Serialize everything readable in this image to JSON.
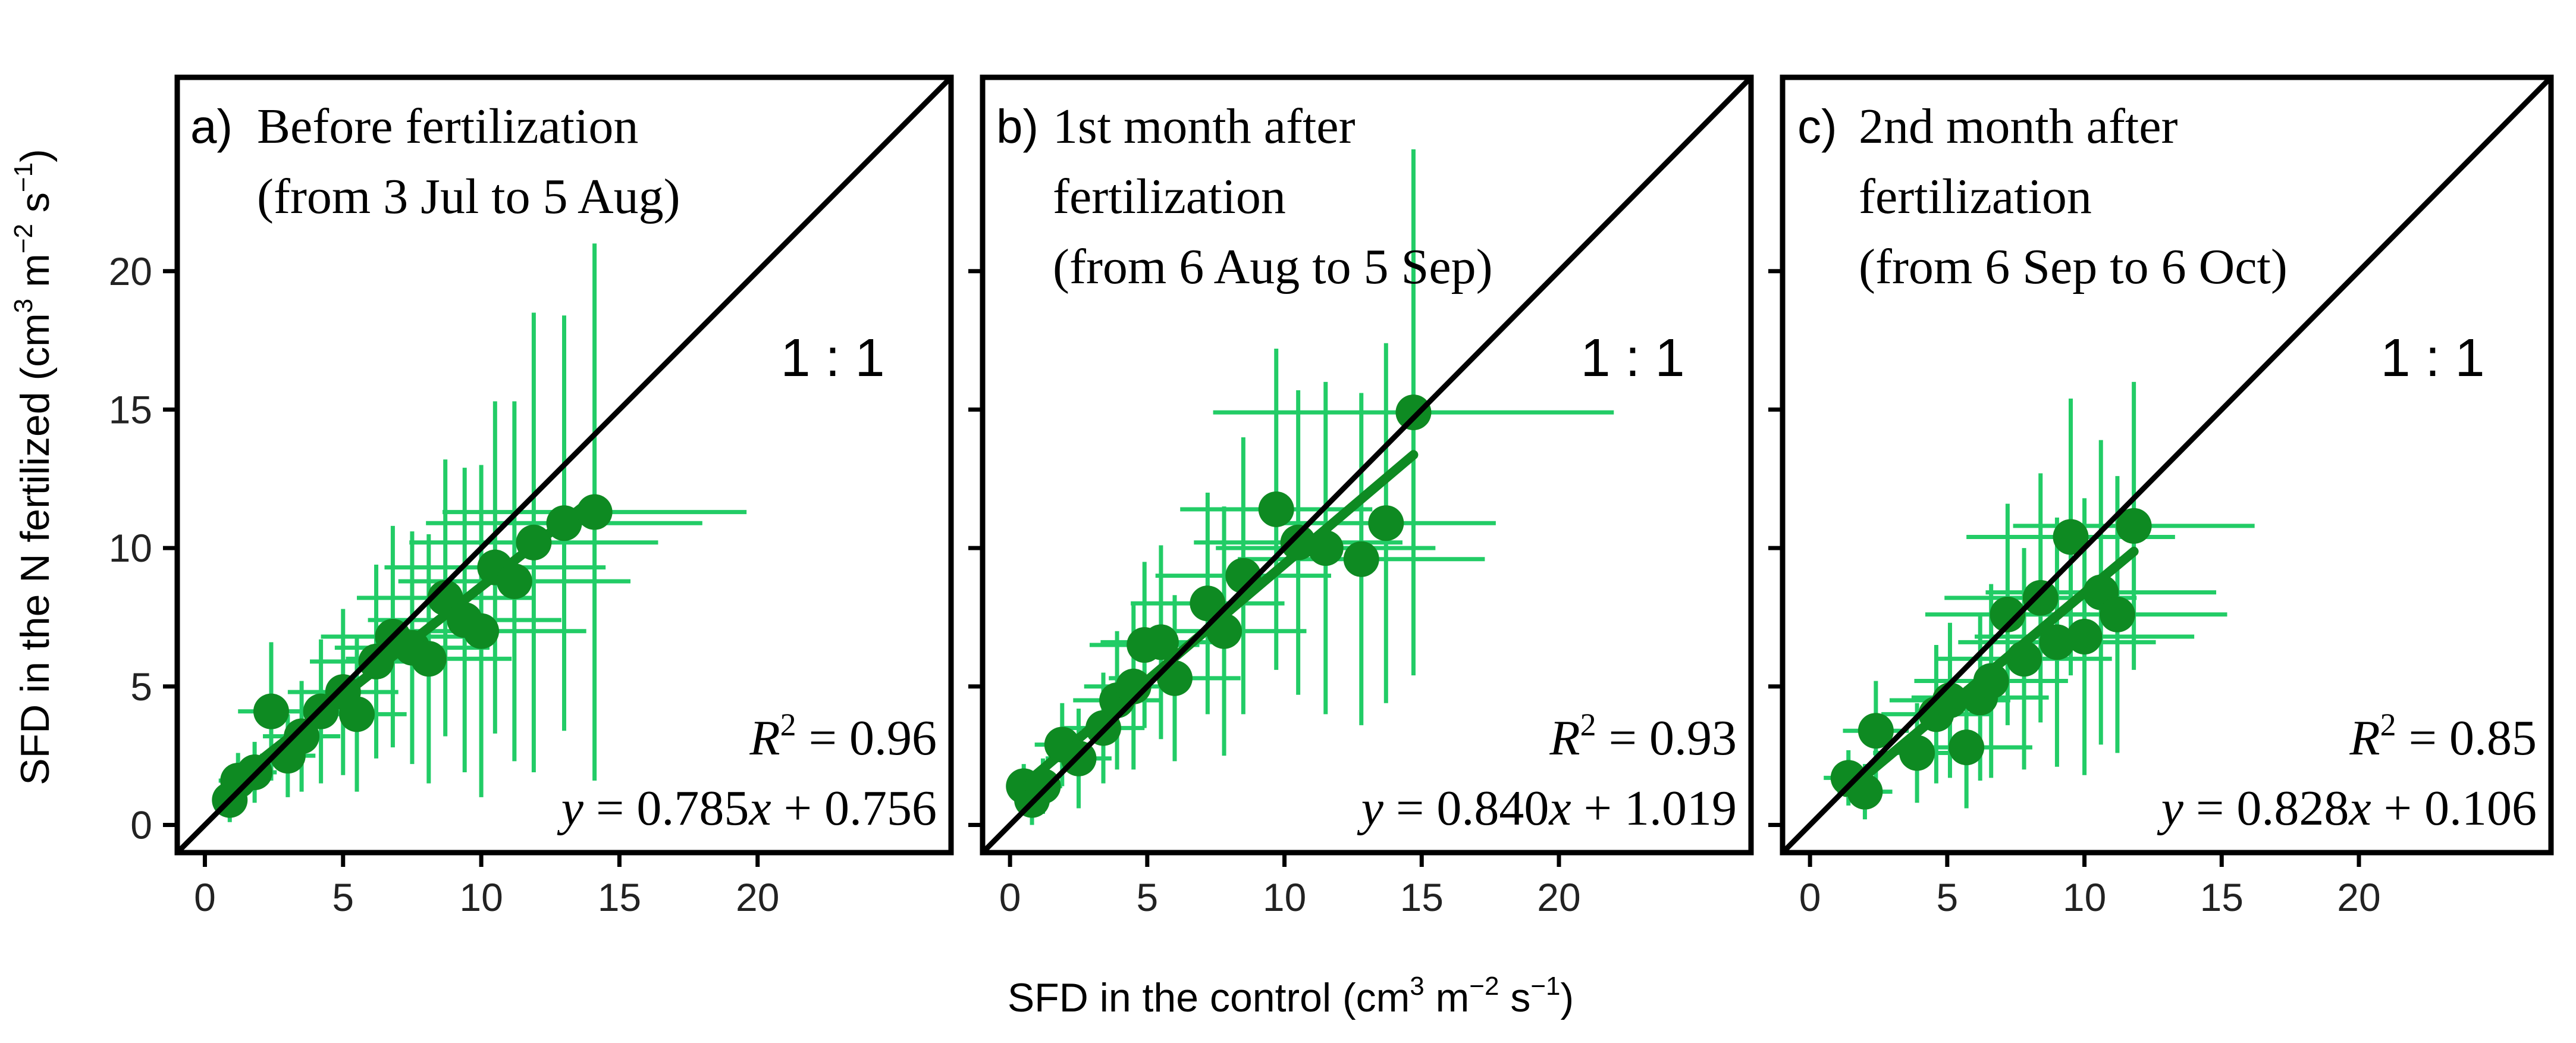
{
  "figure": {
    "ylabel_main": "SFD in the N fertilized (cm",
    "ylabel_sup1": "3",
    "ylabel_mid": " m",
    "ylabel_sup2": "−2",
    "ylabel_mid2": " s",
    "ylabel_sup3": "−1",
    "ylabel_end": ")",
    "xlabel_main": "SFD in the control (cm",
    "xlabel_sup1": "3",
    "xlabel_mid": " m",
    "xlabel_sup2": "−2",
    "xlabel_mid2": " s",
    "xlabel_sup3": "−1",
    "xlabel_end": ")",
    "colors": {
      "points": "#0e8a22",
      "errorbars": "#22cc66",
      "fit": "#0e8a22",
      "axis": "#000000"
    }
  },
  "chart_data": [
    {
      "type": "scatter",
      "panel_label": "a)",
      "title_lines": [
        "Before fertilization",
        "(from 3 Jul to 5 Aug)"
      ],
      "one_to_one_label": "1 : 1",
      "r2_label": "R",
      "r2_sup": "2",
      "r2_value": " = 0.96",
      "eq_y": "y",
      "eq_mid": " = 0.785",
      "eq_x": "x",
      "eq_end": " + 0.756",
      "slope": 0.785,
      "intercept": 0.756,
      "fit_range": [
        0.7,
        14.0
      ],
      "xlim": [
        -1,
        27
      ],
      "ylim": [
        -1,
        27
      ],
      "xticks": [
        0,
        5,
        10,
        15,
        20
      ],
      "yticks": [
        0,
        5,
        10,
        15,
        20
      ],
      "points": [
        {
          "x": 0.9,
          "y": 0.9,
          "xe": 0.6,
          "ye": 0.8
        },
        {
          "x": 1.2,
          "y": 1.6,
          "xe": 0.7,
          "ye": 1.0
        },
        {
          "x": 1.8,
          "y": 1.9,
          "xe": 0.8,
          "ye": 1.1
        },
        {
          "x": 2.4,
          "y": 4.1,
          "xe": 1.2,
          "ye": 2.5
        },
        {
          "x": 3.0,
          "y": 2.5,
          "xe": 1.0,
          "ye": 1.5
        },
        {
          "x": 3.5,
          "y": 3.2,
          "xe": 1.4,
          "ye": 2.0
        },
        {
          "x": 4.2,
          "y": 4.1,
          "xe": 1.6,
          "ye": 2.6
        },
        {
          "x": 5.0,
          "y": 4.8,
          "xe": 2.0,
          "ye": 3.0
        },
        {
          "x": 5.5,
          "y": 4.0,
          "xe": 1.8,
          "ye": 2.8
        },
        {
          "x": 6.2,
          "y": 5.9,
          "xe": 2.4,
          "ye": 3.5
        },
        {
          "x": 6.8,
          "y": 6.8,
          "xe": 2.6,
          "ye": 4.0
        },
        {
          "x": 7.5,
          "y": 6.4,
          "xe": 2.8,
          "ye": 4.2
        },
        {
          "x": 8.1,
          "y": 6.0,
          "xe": 3.0,
          "ye": 4.5
        },
        {
          "x": 8.7,
          "y": 8.2,
          "xe": 3.2,
          "ye": 5.0
        },
        {
          "x": 9.4,
          "y": 7.4,
          "xe": 3.5,
          "ye": 5.5
        },
        {
          "x": 10.0,
          "y": 7.0,
          "xe": 3.8,
          "ye": 6.0
        },
        {
          "x": 10.5,
          "y": 9.3,
          "xe": 4.0,
          "ye": 6.0
        },
        {
          "x": 11.2,
          "y": 8.8,
          "xe": 4.2,
          "ye": 6.5
        },
        {
          "x": 11.9,
          "y": 10.2,
          "xe": 4.5,
          "ye": 8.3
        },
        {
          "x": 13.0,
          "y": 10.9,
          "xe": 5.0,
          "ye": 7.5
        },
        {
          "x": 14.1,
          "y": 11.3,
          "xe": 5.5,
          "ye": 9.7
        }
      ]
    },
    {
      "type": "scatter",
      "panel_label": "b)",
      "title_lines": [
        "1st month after",
        "fertilization",
        "(from 6 Aug to 5 Sep)"
      ],
      "one_to_one_label": "1 : 1",
      "r2_label": "R",
      "r2_sup": "2",
      "r2_value": " = 0.93",
      "eq_y": "y",
      "eq_mid": " = 0.840",
      "eq_x": "x",
      "eq_end": " + 1.019",
      "slope": 0.84,
      "intercept": 1.019,
      "fit_range": [
        0.5,
        14.7
      ],
      "xlim": [
        -1,
        27
      ],
      "ylim": [
        -1,
        27
      ],
      "xticks": [
        0,
        5,
        10,
        15,
        20
      ],
      "yticks": [
        0,
        5,
        10,
        15,
        20
      ],
      "points": [
        {
          "x": 0.5,
          "y": 1.4,
          "xe": 0.5,
          "ye": 0.8
        },
        {
          "x": 0.8,
          "y": 0.9,
          "xe": 0.6,
          "ye": 0.9
        },
        {
          "x": 1.2,
          "y": 1.4,
          "xe": 0.7,
          "ye": 1.0
        },
        {
          "x": 1.9,
          "y": 2.9,
          "xe": 1.0,
          "ye": 1.5
        },
        {
          "x": 2.5,
          "y": 2.4,
          "xe": 1.2,
          "ye": 1.8
        },
        {
          "x": 3.4,
          "y": 3.5,
          "xe": 1.5,
          "ye": 2.0
        },
        {
          "x": 3.9,
          "y": 4.5,
          "xe": 1.6,
          "ye": 2.5
        },
        {
          "x": 4.5,
          "y": 5.0,
          "xe": 1.8,
          "ye": 3.0
        },
        {
          "x": 4.9,
          "y": 6.5,
          "xe": 2.0,
          "ye": 3.0
        },
        {
          "x": 5.5,
          "y": 6.6,
          "xe": 2.2,
          "ye": 3.5
        },
        {
          "x": 6.0,
          "y": 5.3,
          "xe": 2.4,
          "ye": 3.0
        },
        {
          "x": 7.2,
          "y": 8.0,
          "xe": 2.8,
          "ye": 4.0
        },
        {
          "x": 7.8,
          "y": 7.0,
          "xe": 3.0,
          "ye": 4.5
        },
        {
          "x": 8.5,
          "y": 9.0,
          "xe": 3.2,
          "ye": 5.0
        },
        {
          "x": 9.7,
          "y": 11.4,
          "xe": 3.5,
          "ye": 5.8
        },
        {
          "x": 10.5,
          "y": 10.2,
          "xe": 3.8,
          "ye": 5.5
        },
        {
          "x": 11.5,
          "y": 10.0,
          "xe": 4.0,
          "ye": 6.0
        },
        {
          "x": 12.8,
          "y": 9.6,
          "xe": 4.5,
          "ye": 6.0
        },
        {
          "x": 13.7,
          "y": 10.9,
          "xe": 4.0,
          "ye": 6.5
        },
        {
          "x": 14.7,
          "y": 14.9,
          "xe": 7.3,
          "ye": 9.5
        }
      ]
    },
    {
      "type": "scatter",
      "panel_label": "c)",
      "title_lines": [
        "2nd month after",
        "fertilization",
        "(from 6 Sep to 6 Oct)"
      ],
      "one_to_one_label": "1 : 1",
      "r2_label": "R",
      "r2_sup": "2",
      "r2_value": " = 0.85",
      "eq_y": "y",
      "eq_mid": " = 0.828",
      "eq_x": "x",
      "eq_end": " + 0.106",
      "slope": 0.828,
      "intercept": 0.106,
      "fit_range": [
        1.3,
        11.8
      ],
      "xlim": [
        -1,
        27
      ],
      "ylim": [
        -1,
        27
      ],
      "xticks": [
        0,
        5,
        10,
        15,
        20
      ],
      "yticks": [
        0,
        5,
        10,
        15,
        20
      ],
      "points": [
        {
          "x": 1.4,
          "y": 1.7,
          "xe": 0.9,
          "ye": 1.0
        },
        {
          "x": 2.0,
          "y": 1.2,
          "xe": 1.0,
          "ye": 1.0
        },
        {
          "x": 2.4,
          "y": 3.4,
          "xe": 1.2,
          "ye": 1.8
        },
        {
          "x": 3.9,
          "y": 2.6,
          "xe": 1.6,
          "ye": 1.8
        },
        {
          "x": 4.6,
          "y": 4.0,
          "xe": 2.0,
          "ye": 2.5
        },
        {
          "x": 5.1,
          "y": 4.5,
          "xe": 2.2,
          "ye": 2.8
        },
        {
          "x": 5.7,
          "y": 2.8,
          "xe": 2.4,
          "ye": 2.2
        },
        {
          "x": 6.2,
          "y": 4.6,
          "xe": 2.5,
          "ye": 3.0
        },
        {
          "x": 6.6,
          "y": 5.2,
          "xe": 2.8,
          "ye": 3.5
        },
        {
          "x": 7.2,
          "y": 7.6,
          "xe": 3.0,
          "ye": 4.0
        },
        {
          "x": 7.8,
          "y": 6.0,
          "xe": 3.2,
          "ye": 4.0
        },
        {
          "x": 8.4,
          "y": 8.2,
          "xe": 3.5,
          "ye": 4.5
        },
        {
          "x": 9.0,
          "y": 6.6,
          "xe": 3.6,
          "ye": 4.5
        },
        {
          "x": 9.5,
          "y": 10.4,
          "xe": 3.8,
          "ye": 5.0
        },
        {
          "x": 10.0,
          "y": 6.8,
          "xe": 4.0,
          "ye": 5.0
        },
        {
          "x": 10.6,
          "y": 8.4,
          "xe": 4.2,
          "ye": 5.5
        },
        {
          "x": 11.2,
          "y": 7.6,
          "xe": 4.0,
          "ye": 5.0
        },
        {
          "x": 11.8,
          "y": 10.8,
          "xe": 4.4,
          "ye": 5.2
        }
      ]
    }
  ]
}
